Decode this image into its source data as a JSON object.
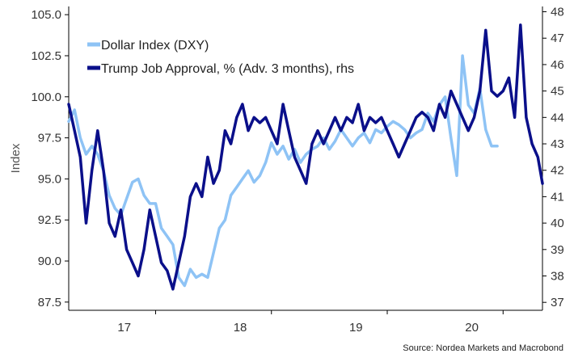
{
  "chart_data": {
    "type": "line",
    "title": "",
    "ylabel_left": "Index",
    "ylabel_right": "",
    "ylim_left": [
      87.0,
      105.5
    ],
    "ylim_right": [
      36.7,
      48.2
    ],
    "yticks_left": [
      "105.0",
      "102.5",
      "100.0",
      "97.5",
      "95.0",
      "92.5",
      "90.0",
      "87.5"
    ],
    "yticks_left_values": [
      105.0,
      102.5,
      100.0,
      97.5,
      95.0,
      92.5,
      90.0,
      87.5
    ],
    "yticks_right": [
      "48",
      "47",
      "46",
      "45",
      "44",
      "43",
      "42",
      "41",
      "40",
      "39",
      "38",
      "37"
    ],
    "yticks_right_values": [
      48,
      47,
      46,
      45,
      44,
      43,
      42,
      41,
      40,
      39,
      38,
      37
    ],
    "xlim": [
      2016.6,
      2020.69
    ],
    "xtick_labels": [
      {
        "label": "17",
        "pos": 2017.08
      },
      {
        "label": "18",
        "pos": 2018.08
      },
      {
        "label": "19",
        "pos": 2019.08
      },
      {
        "label": "20",
        "pos": 2020.08
      }
    ],
    "x_separators": [
      2017.35,
      2018.35,
      2019.35,
      2020.35
    ],
    "grid": false,
    "legend_position": "top-left",
    "series": [
      {
        "name": "Dollar Index (DXY)",
        "axis": "left",
        "color": "#8ec3f5",
        "x": [
          2016.6,
          2016.65,
          2016.7,
          2016.75,
          2016.8,
          2016.85,
          2016.9,
          2016.95,
          2017.0,
          2017.05,
          2017.1,
          2017.15,
          2017.2,
          2017.25,
          2017.3,
          2017.35,
          2017.4,
          2017.45,
          2017.5,
          2017.55,
          2017.6,
          2017.65,
          2017.7,
          2017.75,
          2017.8,
          2017.85,
          2017.9,
          2017.95,
          2018.0,
          2018.05,
          2018.1,
          2018.15,
          2018.2,
          2018.25,
          2018.3,
          2018.35,
          2018.4,
          2018.45,
          2018.5,
          2018.55,
          2018.6,
          2018.65,
          2018.7,
          2018.75,
          2018.8,
          2018.85,
          2018.9,
          2018.95,
          2019.0,
          2019.05,
          2019.1,
          2019.15,
          2019.2,
          2019.25,
          2019.3,
          2019.35,
          2019.4,
          2019.45,
          2019.5,
          2019.55,
          2019.6,
          2019.65,
          2019.7,
          2019.75,
          2019.8,
          2019.85,
          2019.9,
          2019.95,
          2020.0,
          2020.05,
          2020.1,
          2020.15,
          2020.2,
          2020.25,
          2020.3
        ],
        "y": [
          98.5,
          99.2,
          97.5,
          96.5,
          97.0,
          96.5,
          95.5,
          94.0,
          93.2,
          92.8,
          93.8,
          94.8,
          95.0,
          94.0,
          93.5,
          93.5,
          92.0,
          91.5,
          91.0,
          89.0,
          88.5,
          89.5,
          89.0,
          89.2,
          89.0,
          90.5,
          92.0,
          92.5,
          94.0,
          94.5,
          95.0,
          95.5,
          94.8,
          95.2,
          96.0,
          97.2,
          96.5,
          97.0,
          96.2,
          96.8,
          96.0,
          96.5,
          96.8,
          97.0,
          97.5,
          96.8,
          97.3,
          98.0,
          97.5,
          97.0,
          97.5,
          97.8,
          97.2,
          98.0,
          97.8,
          98.2,
          98.5,
          98.3,
          98.0,
          97.5,
          97.8,
          98.0,
          99.0,
          98.5,
          99.5,
          100.0,
          97.5,
          95.2,
          102.5,
          99.5,
          99.0,
          100.5,
          98.0,
          97.0,
          97.0
        ]
      },
      {
        "name": "Trump Job Approval, % (Adv. 3 months), rhs",
        "axis": "right",
        "color": "#0a0f8a",
        "x": [
          2016.6,
          2016.65,
          2016.7,
          2016.75,
          2016.8,
          2016.85,
          2016.9,
          2016.95,
          2017.0,
          2017.05,
          2017.1,
          2017.15,
          2017.2,
          2017.25,
          2017.3,
          2017.35,
          2017.4,
          2017.45,
          2017.5,
          2017.55,
          2017.6,
          2017.65,
          2017.7,
          2017.75,
          2017.8,
          2017.85,
          2017.9,
          2017.95,
          2018.0,
          2018.05,
          2018.1,
          2018.15,
          2018.2,
          2018.25,
          2018.3,
          2018.35,
          2018.4,
          2018.45,
          2018.5,
          2018.55,
          2018.6,
          2018.65,
          2018.7,
          2018.75,
          2018.8,
          2018.85,
          2018.9,
          2018.95,
          2019.0,
          2019.05,
          2019.1,
          2019.15,
          2019.2,
          2019.25,
          2019.3,
          2019.35,
          2019.4,
          2019.45,
          2019.5,
          2019.55,
          2019.6,
          2019.65,
          2019.7,
          2019.75,
          2019.8,
          2019.85,
          2019.9,
          2019.95,
          2020.0,
          2020.05,
          2020.1,
          2020.15,
          2020.2,
          2020.25,
          2020.3,
          2020.35,
          2020.4,
          2020.45,
          2020.5,
          2020.55,
          2020.6,
          2020.65,
          2020.69
        ],
        "y": [
          44.5,
          43.5,
          42.5,
          40.0,
          42.0,
          43.5,
          42.0,
          40.0,
          39.5,
          40.5,
          39.0,
          38.5,
          38.0,
          39.0,
          40.5,
          39.5,
          38.5,
          38.2,
          37.5,
          38.5,
          39.5,
          41.0,
          41.5,
          41.0,
          42.5,
          41.5,
          42.0,
          43.5,
          43.0,
          44.0,
          44.5,
          43.5,
          44.0,
          43.8,
          44.0,
          43.5,
          43.0,
          44.5,
          43.5,
          42.5,
          42.0,
          41.5,
          43.0,
          43.5,
          43.0,
          43.5,
          44.0,
          43.5,
          44.0,
          43.8,
          44.5,
          43.5,
          44.0,
          43.8,
          44.0,
          43.5,
          43.0,
          42.5,
          43.0,
          43.5,
          44.0,
          44.2,
          44.0,
          43.5,
          44.5,
          44.0,
          45.0,
          44.5,
          44.0,
          43.5,
          44.0,
          45.0,
          47.3,
          45.0,
          44.8,
          45.0,
          45.5,
          44.0,
          47.5,
          44.0,
          43.0,
          42.5,
          41.5
        ]
      }
    ]
  },
  "source": "Source: Nordea Markets and Macrobond"
}
